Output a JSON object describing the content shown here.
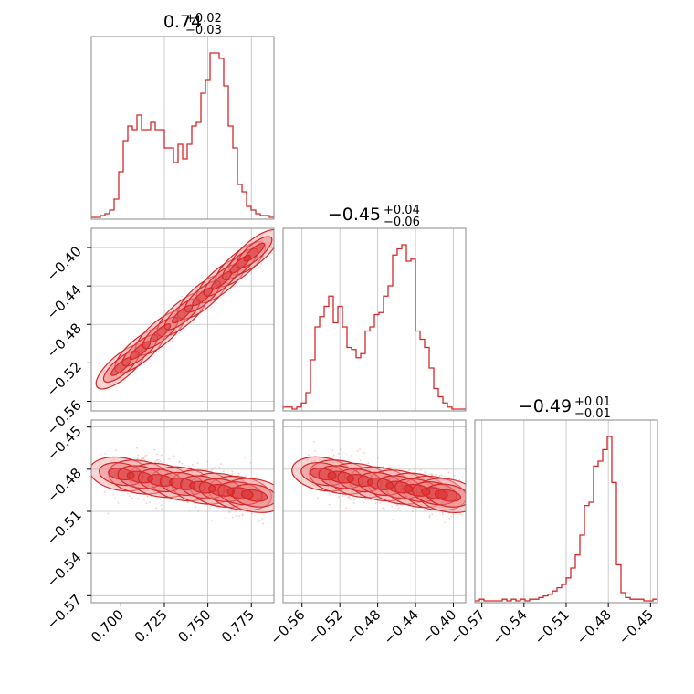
{
  "figure": {
    "accent_color": "#d62728",
    "fill_color": "#f4a9ab",
    "grid": true
  },
  "chart_data": [
    {
      "type": "histogram",
      "panel": "top-left",
      "title_main": "0.74",
      "title_plus": "+0.02",
      "title_minus": "−0.03",
      "xlim": [
        0.683,
        0.788
      ],
      "bins_start": 0.683,
      "bin_width": 0.002625,
      "counts": [
        0,
        0,
        1,
        2,
        4,
        10,
        25,
        42,
        50,
        48,
        56,
        48,
        48,
        52,
        48,
        48,
        38,
        38,
        30,
        40,
        32,
        40,
        50,
        52,
        68,
        75,
        90,
        90,
        87,
        72,
        50,
        38,
        18,
        14,
        6,
        4,
        2,
        1,
        1,
        0
      ]
    },
    {
      "type": "scatter",
      "panel": "mid-left",
      "xlim": [
        0.683,
        0.788
      ],
      "ylim": [
        -0.57,
        -0.38
      ],
      "yticks": [
        "−0.40",
        "−0.44",
        "−0.48",
        "−0.52",
        "−0.56"
      ],
      "ytick_values": [
        -0.4,
        -0.44,
        -0.48,
        -0.52,
        -0.56
      ],
      "trend": [
        [
          0.693,
          -0.535
        ],
        [
          0.783,
          -0.395
        ]
      ]
    },
    {
      "type": "histogram",
      "panel": "mid-middle",
      "title_main": "−0.45",
      "title_plus": "+0.04",
      "title_minus": "−0.06",
      "xlim": [
        -0.58,
        -0.387
      ],
      "bins_start": -0.58,
      "bin_width": 0.004825,
      "counts": [
        1,
        1,
        0,
        1,
        3,
        8,
        24,
        40,
        45,
        50,
        55,
        42,
        50,
        40,
        30,
        29,
        25,
        27,
        38,
        40,
        46,
        47,
        55,
        60,
        75,
        78,
        80,
        72,
        73,
        38,
        34,
        30,
        20,
        10,
        6,
        3,
        1,
        0,
        0,
        0
      ]
    },
    {
      "type": "scatter",
      "panel": "bottom-left",
      "xlim": [
        0.683,
        0.788
      ],
      "ylim": [
        -0.575,
        -0.445
      ],
      "yticks": [
        "−0.45",
        "−0.48",
        "−0.51",
        "−0.54",
        "−0.57"
      ],
      "ytick_values": [
        -0.45,
        -0.48,
        -0.51,
        -0.54,
        -0.57
      ],
      "trend": [
        [
          0.693,
          -0.482
        ],
        [
          0.783,
          -0.5
        ]
      ]
    },
    {
      "type": "scatter",
      "panel": "bottom-middle",
      "xlim": [
        -0.58,
        -0.387
      ],
      "ylim": [
        -0.575,
        -0.445
      ],
      "trend": [
        [
          -0.55,
          -0.482
        ],
        [
          -0.395,
          -0.5
        ]
      ]
    },
    {
      "type": "histogram",
      "panel": "bottom-right",
      "title_main": "−0.49",
      "title_plus": "+0.01",
      "title_minus": "−0.01",
      "xlim": [
        -0.575,
        -0.445
      ],
      "bins_start": -0.575,
      "bin_width": 0.00325,
      "counts": [
        0,
        1,
        0,
        0,
        0,
        0,
        1,
        0,
        1,
        0,
        1,
        0,
        1,
        1,
        2,
        3,
        4,
        6,
        8,
        10,
        14,
        20,
        28,
        40,
        58,
        60,
        82,
        85,
        92,
        100,
        72,
        22,
        5,
        2,
        1,
        1,
        1,
        0,
        0,
        1
      ]
    }
  ],
  "x_axes": {
    "col1": {
      "ticks": [
        "0.700",
        "0.725",
        "0.750",
        "0.775"
      ],
      "values": [
        0.7,
        0.725,
        0.75,
        0.775
      ]
    },
    "col2": {
      "ticks": [
        "−0.56",
        "−0.52",
        "−0.48",
        "−0.44",
        "−0.40"
      ],
      "values": [
        -0.56,
        -0.52,
        -0.48,
        -0.44,
        -0.4
      ]
    },
    "col3": {
      "ticks": [
        "−0.57",
        "−0.54",
        "−0.51",
        "−0.48",
        "−0.45"
      ],
      "values": [
        -0.57,
        -0.54,
        -0.51,
        -0.48,
        -0.45
      ]
    }
  }
}
